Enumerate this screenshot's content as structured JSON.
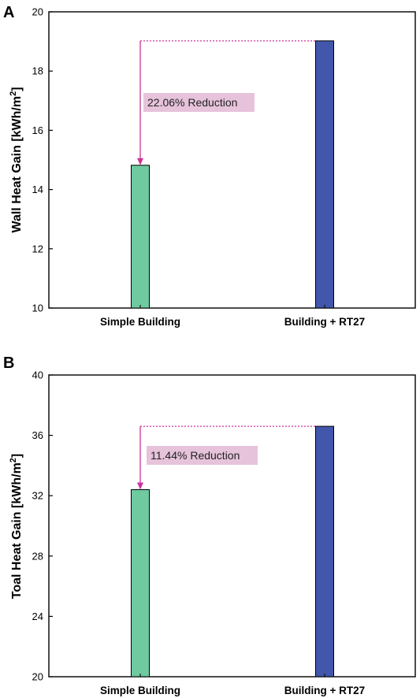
{
  "colors": {
    "bar_simple": "#6fc9a1",
    "bar_rt27": "#4257ab",
    "annotation": "#cc3399",
    "annotation_box": "#e6c3db"
  },
  "chart_data": [
    {
      "panel": "A",
      "type": "bar",
      "categories": [
        "Simple Building",
        "Building + RT27"
      ],
      "values": [
        14.82,
        19.02
      ],
      "ylabel_main": "Wall Heat Gain [kWh/m",
      "ylabel_sup": "2",
      "ylabel_end": "]",
      "ylim": [
        10,
        20
      ],
      "yticks": [
        10,
        12,
        14,
        16,
        18,
        20
      ],
      "annotation": "22.06% Reduction"
    },
    {
      "panel": "B",
      "type": "bar",
      "categories": [
        "Simple Building",
        "Building + RT27"
      ],
      "values": [
        32.4,
        36.6
      ],
      "ylabel_main": "Toal Heat Gain [kWh/m",
      "ylabel_sup": "2",
      "ylabel_end": "]",
      "ylim": [
        20,
        40
      ],
      "yticks": [
        20,
        24,
        28,
        32,
        36,
        40
      ],
      "annotation": "11.44% Reduction"
    }
  ]
}
